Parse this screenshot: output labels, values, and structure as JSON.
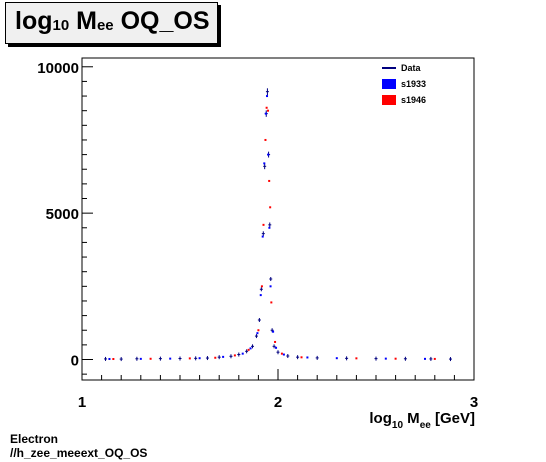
{
  "header": {
    "title_main": "log",
    "title_sub": "10",
    "title_m": " M",
    "title_m_sub": "ee",
    "title_rest": " OQ_OS"
  },
  "footer": {
    "line1": "Electron",
    "line2": "//h_zee_meeext_OQ_OS"
  },
  "chart_data": {
    "type": "scatter",
    "title": "log10 Mee OQ_OS",
    "xlabel": "log10 Mee [GeV]",
    "ylabel": "",
    "xlim": [
      1,
      3
    ],
    "ylim": [
      -700,
      10300
    ],
    "x_ticks": [
      1,
      2,
      3
    ],
    "y_ticks": [
      0,
      5000,
      10000
    ],
    "legend_position": "top-right",
    "series": [
      {
        "name": "Data",
        "color": "#00007f",
        "marker": "cross-line",
        "points": [
          [
            1.12,
            20
          ],
          [
            1.2,
            15
          ],
          [
            1.28,
            25
          ],
          [
            1.4,
            30
          ],
          [
            1.5,
            35
          ],
          [
            1.58,
            40
          ],
          [
            1.64,
            50
          ],
          [
            1.7,
            80
          ],
          [
            1.76,
            110
          ],
          [
            1.8,
            170
          ],
          [
            1.84,
            280
          ],
          [
            1.87,
            450
          ],
          [
            1.89,
            800
          ],
          [
            1.905,
            1350
          ],
          [
            1.915,
            2400
          ],
          [
            1.925,
            4300
          ],
          [
            1.932,
            6600
          ],
          [
            1.94,
            8400
          ],
          [
            1.946,
            9150
          ],
          [
            1.952,
            7000
          ],
          [
            1.958,
            4600
          ],
          [
            1.963,
            2750
          ],
          [
            1.97,
            1000
          ],
          [
            1.98,
            450
          ],
          [
            2.0,
            250
          ],
          [
            2.05,
            120
          ],
          [
            2.1,
            80
          ],
          [
            2.2,
            55
          ],
          [
            2.35,
            40
          ],
          [
            2.5,
            30
          ],
          [
            2.65,
            25
          ],
          [
            2.78,
            20
          ],
          [
            2.88,
            15
          ]
        ]
      },
      {
        "name": "s1933",
        "color": "#0000ff",
        "marker": "filled-dot",
        "points": [
          [
            1.14,
            18
          ],
          [
            1.3,
            22
          ],
          [
            1.45,
            30
          ],
          [
            1.6,
            45
          ],
          [
            1.72,
            90
          ],
          [
            1.82,
            200
          ],
          [
            1.86,
            380
          ],
          [
            1.895,
            900
          ],
          [
            1.912,
            2200
          ],
          [
            1.922,
            4200
          ],
          [
            1.93,
            6700
          ],
          [
            1.938,
            8400
          ],
          [
            1.944,
            9000
          ],
          [
            1.95,
            7000
          ],
          [
            1.956,
            4500
          ],
          [
            1.962,
            2500
          ],
          [
            1.975,
            950
          ],
          [
            1.99,
            400
          ],
          [
            2.03,
            170
          ],
          [
            2.15,
            70
          ],
          [
            2.3,
            45
          ],
          [
            2.55,
            30
          ],
          [
            2.75,
            22
          ]
        ]
      },
      {
        "name": "s1946",
        "color": "#ff0000",
        "marker": "filled-dot",
        "points": [
          [
            1.16,
            17
          ],
          [
            1.35,
            25
          ],
          [
            1.55,
            38
          ],
          [
            1.68,
            60
          ],
          [
            1.78,
            140
          ],
          [
            1.85,
            330
          ],
          [
            1.9,
            1000
          ],
          [
            1.918,
            2500
          ],
          [
            1.926,
            4600
          ],
          [
            1.936,
            7500
          ],
          [
            1.942,
            8600
          ],
          [
            1.949,
            8500
          ],
          [
            1.955,
            6100
          ],
          [
            1.96,
            5200
          ],
          [
            1.966,
            1950
          ],
          [
            1.985,
            600
          ],
          [
            2.02,
            200
          ],
          [
            2.12,
            75
          ],
          [
            2.4,
            40
          ],
          [
            2.6,
            28
          ],
          [
            2.8,
            20
          ]
        ]
      }
    ]
  }
}
